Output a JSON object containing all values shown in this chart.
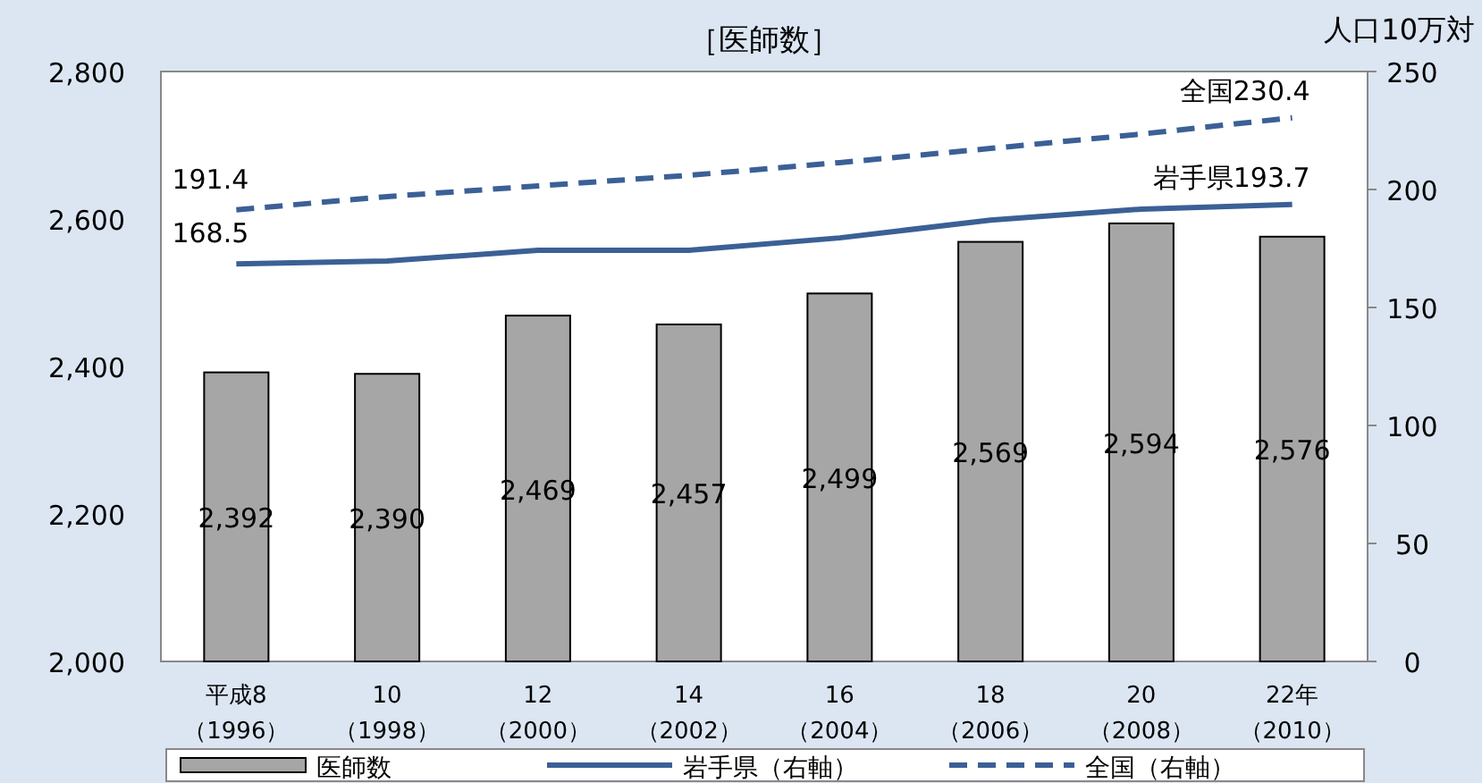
{
  "chart_data": {
    "type": "bar",
    "title": "［医師数］",
    "y2label": "人口10万対",
    "categories": [
      "平成8（1996）",
      "10（1998）",
      "12（2000）",
      "14（2002）",
      "16（2004）",
      "18（2006）",
      "20（2008）",
      "22年（2010）"
    ],
    "series": [
      {
        "name": "医師数",
        "color": "#a6a6a6",
        "values": [
          2392,
          2390,
          2469,
          2457,
          2499,
          2569,
          2594,
          2576
        ],
        "value_labels": [
          "2,392",
          "2,390",
          "2,469",
          "2,457",
          "2,499",
          "2,569",
          "2,594",
          "2,576"
        ]
      },
      {
        "name": "岩手県（右軸）",
        "type": "line",
        "axis": "y2",
        "color": "#3b6096",
        "line_style": "solid",
        "values": [
          168.5,
          169.7,
          174.2,
          174.2,
          179.5,
          187,
          191.7,
          193.7
        ],
        "value_labels": [
          "168.5",
          null,
          null,
          null,
          null,
          null,
          null,
          "岩手県193.7"
        ]
      },
      {
        "name": "全国（右軸）",
        "type": "line",
        "axis": "y2",
        "color": "#3b6096",
        "line_style": "dashed",
        "values": [
          191.4,
          197,
          201.5,
          206,
          211.4,
          217.4,
          223.5,
          230.4
        ],
        "value_labels": [
          "191.4",
          null,
          null,
          null,
          null,
          null,
          null,
          "全国230.4"
        ]
      }
    ],
    "ylim": [
      2000,
      2800
    ],
    "yticks": [
      {
        "value": 2000,
        "label": "2,000"
      },
      {
        "value": 2200,
        "label": "2,200"
      },
      {
        "value": 2400,
        "label": "2,400"
      },
      {
        "value": 2600,
        "label": "2,600"
      },
      {
        "value": 2800,
        "label": "2,800"
      }
    ],
    "y2lim": [
      0,
      250
    ],
    "y2ticks": [
      0,
      50,
      100,
      150,
      200,
      250
    ],
    "legend": "bottom",
    "grid": false
  }
}
